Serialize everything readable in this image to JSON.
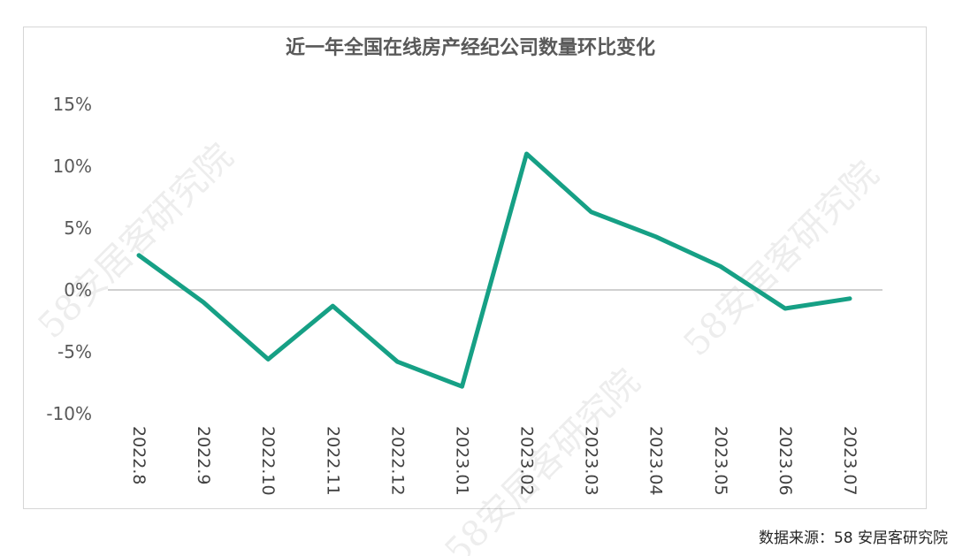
{
  "chart_data": {
    "type": "line",
    "title": "近一年全国在线房产经纪公司数量环比变化",
    "categories": [
      "2022.8",
      "2022.9",
      "2022.10",
      "2022.11",
      "2022.12",
      "2023.01",
      "2023.02",
      "2023.03",
      "2023.04",
      "2023.05",
      "2023.06",
      "2023.07"
    ],
    "series": [
      {
        "values": [
          2.8,
          -1.0,
          -5.6,
          -1.3,
          -5.8,
          -7.8,
          11.0,
          6.3,
          4.3,
          1.9,
          -1.5,
          -0.7
        ]
      }
    ],
    "yticks": [
      "15%",
      "10%",
      "5%",
      "0%",
      "-5%",
      "-10%"
    ],
    "ylim": [
      -10,
      15
    ],
    "ylabel": "",
    "xlabel": "",
    "grid": false,
    "legend": "none",
    "line_color": "#16a085",
    "zero_line_color": "#d0d0d0"
  },
  "source_note": "数据来源：58 安居客研究院",
  "watermark_text": "58安居客研究院"
}
